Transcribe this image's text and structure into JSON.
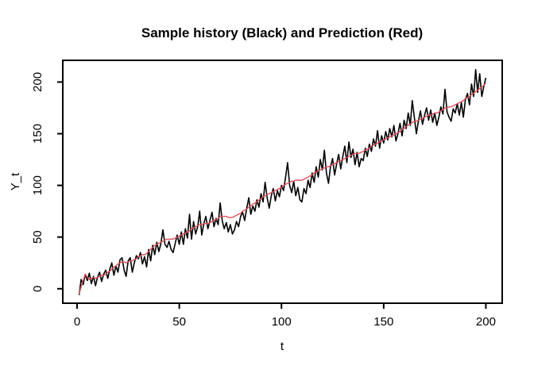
{
  "window": {
    "background": "#ffffff",
    "foreground": "#000000"
  },
  "chart_data": {
    "type": "line",
    "title": "Sample history (Black) and Prediction (Red)",
    "xlabel": "t",
    "ylabel": "Y_t",
    "xticks": [
      0,
      50,
      100,
      150,
      200
    ],
    "yticks": [
      0,
      50,
      100,
      150,
      200
    ],
    "xlim": [
      -7,
      208
    ],
    "ylim": [
      -14,
      221
    ],
    "x_start": 1,
    "x_step": 1,
    "grid": false,
    "legend": "none (series colors named in title)",
    "series": [
      {
        "name": "Sample history",
        "color": "#000000",
        "values": [
          -6,
          9,
          4,
          14,
          8,
          15,
          5,
          12,
          3,
          11,
          16,
          7,
          14,
          18,
          10,
          19,
          25,
          13,
          22,
          16,
          28,
          30,
          18,
          12,
          27,
          30,
          16,
          25,
          32,
          29,
          35,
          24,
          31,
          21,
          38,
          27,
          42,
          33,
          45,
          36,
          44,
          57,
          43,
          40,
          46,
          38,
          35,
          44,
          52,
          43,
          55,
          43,
          58,
          49,
          72,
          48,
          65,
          53,
          60,
          75,
          52,
          63,
          70,
          58,
          66,
          74,
          60,
          68,
          62,
          83,
          66,
          58,
          64,
          55,
          62,
          53,
          57,
          65,
          60,
          70,
          74,
          66,
          78,
          88,
          72,
          80,
          75,
          86,
          79,
          92,
          84,
          103,
          88,
          78,
          90,
          97,
          85,
          95,
          89,
          100,
          95,
          108,
          122,
          100,
          93,
          104,
          90,
          98,
          86,
          84,
          97,
          92,
          105,
          98,
          112,
          103,
          118,
          108,
          125,
          115,
          134,
          112,
          102,
          118,
          126,
          110,
          121,
          130,
          116,
          128,
          138,
          122,
          142,
          127,
          135,
          120,
          132,
          118,
          126,
          124,
          136,
          128,
          140,
          133,
          145,
          138,
          153,
          136,
          148,
          141,
          152,
          144,
          155,
          147,
          158,
          143,
          150,
          160,
          148,
          163,
          155,
          170,
          158,
          182,
          166,
          150,
          162,
          172,
          159,
          168,
          175,
          163,
          173,
          161,
          170,
          158,
          166,
          176,
          169,
          193,
          171,
          166,
          162,
          174,
          170,
          179,
          168,
          180,
          166,
          183,
          189,
          178,
          198,
          186,
          212,
          190,
          208,
          186,
          196,
          204
        ]
      },
      {
        "name": "Prediction",
        "color": "#e0505a",
        "values": [
          -5,
          2,
          8,
          14,
          11,
          9,
          10,
          11,
          10,
          11,
          12,
          13,
          13,
          14,
          16,
          17,
          19,
          21,
          22,
          24,
          25,
          26,
          26,
          25,
          26,
          27,
          27,
          28,
          29,
          31,
          32,
          33,
          33,
          34,
          36,
          38,
          40,
          42,
          43,
          44,
          45,
          46,
          47,
          48,
          48,
          48,
          48,
          49,
          50,
          51,
          52,
          53,
          54,
          55,
          56,
          58,
          59,
          60,
          61,
          62,
          62,
          63,
          63,
          63,
          64,
          65,
          66,
          67,
          68,
          70,
          70,
          70,
          70,
          69,
          69,
          69,
          70,
          71,
          72,
          73,
          75,
          76,
          77,
          79,
          80,
          82,
          83,
          84,
          86,
          87,
          89,
          90,
          91,
          92,
          93,
          94,
          95,
          96,
          97,
          98,
          100,
          101,
          102,
          103,
          104,
          104,
          105,
          105,
          105,
          105,
          106,
          107,
          108,
          109,
          110,
          112,
          113,
          114,
          115,
          116,
          117,
          118,
          118,
          119,
          120,
          121,
          122,
          123,
          124,
          125,
          126,
          127,
          128,
          129,
          130,
          131,
          131,
          131,
          132,
          133,
          134,
          135,
          136,
          138,
          139,
          140,
          141,
          142,
          143,
          144,
          145,
          146,
          147,
          148,
          149,
          150,
          151,
          152,
          154,
          155,
          157,
          158,
          159,
          161,
          162,
          162,
          163,
          164,
          165,
          166,
          167,
          168,
          168,
          169,
          170,
          170,
          171,
          172,
          173,
          175,
          175,
          176,
          176,
          177,
          178,
          179,
          180,
          181,
          182,
          184,
          185,
          186,
          188,
          189,
          191,
          192,
          194,
          195,
          197,
          199
        ]
      }
    ]
  }
}
